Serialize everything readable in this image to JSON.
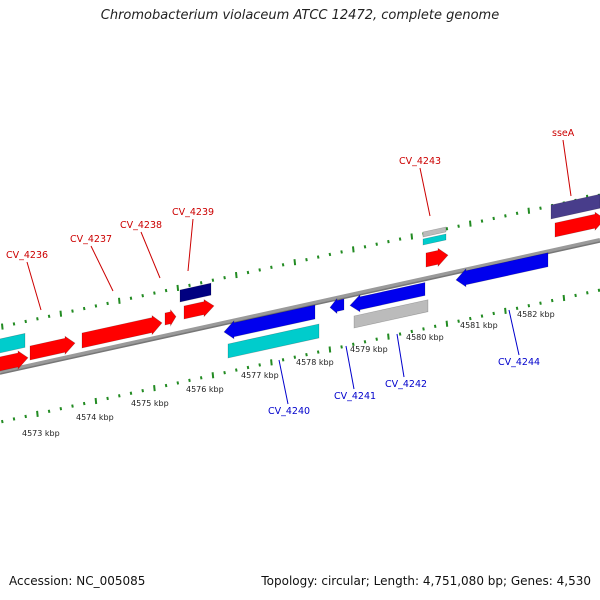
{
  "title": "Chromobacterium violaceum ATCC 12472, complete genome",
  "footer": {
    "accession": "Accession: NC_005085",
    "summary": "Topology: circular; Length: 4,751,080 bp; Genes: 4,530"
  },
  "colors": {
    "forward_gene": "#ff0000",
    "reverse_gene": "#0000ee",
    "cyan_gene": "#00cccc",
    "gray_gene": "#bbbbbb",
    "navy_gene": "#000080",
    "slate_gene": "#483d8b",
    "tick": "#228b22",
    "backbone": "#888888",
    "forward_label": "#cc0000",
    "reverse_label": "#0000cc"
  },
  "scale_labels": [
    "4573 kbp",
    "4574 kbp",
    "4575 kbp",
    "4576 kbp",
    "4577 kbp",
    "4578 kbp",
    "4579 kbp",
    "4580 kbp",
    "4581 kbp",
    "4582 kbp"
  ],
  "forward_labels": [
    "CV_4236",
    "CV_4237",
    "CV_4238",
    "CV_4239",
    "CV_4243",
    "sseA"
  ],
  "reverse_labels": [
    "CV_4240",
    "CV_4241",
    "CV_4242",
    "CV_4244"
  ]
}
